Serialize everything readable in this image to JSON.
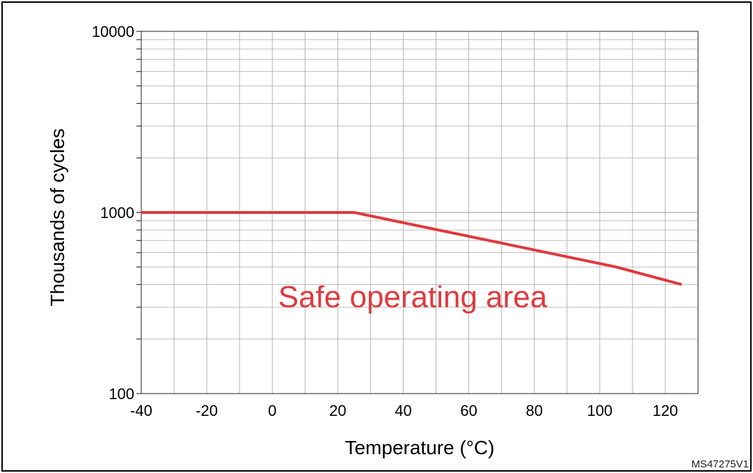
{
  "figure_code": "MS47275V1",
  "chart_data": {
    "type": "line",
    "title": "",
    "xlabel": "Temperature (°C)",
    "ylabel": "Thousands of cycles",
    "xlim": [
      -40,
      130
    ],
    "ylim": [
      100,
      10000
    ],
    "yscale": "log",
    "x_ticks": [
      -40,
      -20,
      0,
      20,
      40,
      60,
      80,
      100,
      120
    ],
    "x_tick_labels": [
      "-40",
      "-20",
      "0",
      "20",
      "40",
      "60",
      "80",
      "100",
      "120"
    ],
    "y_ticks": [
      100,
      1000,
      10000
    ],
    "y_tick_labels": [
      "100",
      "1000",
      "10000"
    ],
    "grid": true,
    "series": [
      {
        "name": "",
        "color": "#e0393e",
        "points": [
          [
            -40,
            1000
          ],
          [
            25,
            1000
          ],
          [
            105,
            500
          ],
          [
            125,
            400
          ]
        ]
      }
    ],
    "annotations": [
      {
        "text": "Safe operating area",
        "color": "#e0393e"
      }
    ]
  }
}
